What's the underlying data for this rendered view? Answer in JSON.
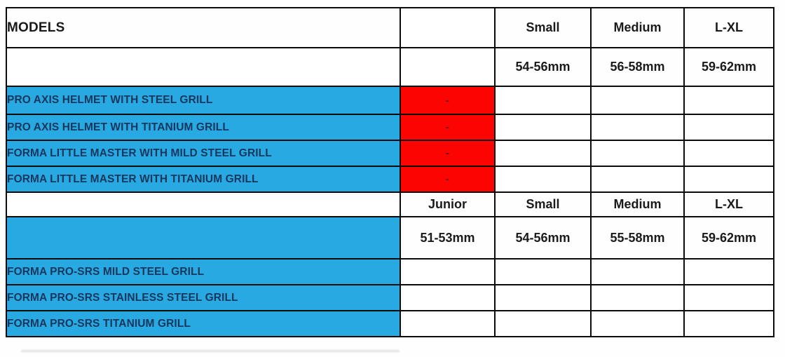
{
  "chart_data": {
    "type": "table",
    "title": "",
    "sections": [
      {
        "columns": [
          "MODELS",
          "",
          "Small",
          "Medium",
          "L-XL"
        ],
        "size_ranges": [
          "",
          "",
          "54-56mm",
          "56-58mm",
          "59-62mm"
        ],
        "rows": [
          [
            "PRO AXIS HELMET WITH STEEL GRILL",
            "-",
            "",
            "",
            ""
          ],
          [
            "PRO AXIS HELMET WITH TITANIUM GRILL",
            "-",
            "",
            "",
            ""
          ],
          [
            "FORMA LITTLE MASTER WITH MILD STEEL GRILL",
            "-",
            "",
            "",
            ""
          ],
          [
            "FORMA LITTLE MASTER WITH TITANIUM GRILL",
            "-",
            "",
            "",
            ""
          ]
        ]
      },
      {
        "columns": [
          "",
          "Junior",
          "Small",
          "Medium",
          "L-XL"
        ],
        "size_ranges": [
          "",
          "51-53mm",
          "54-56mm",
          "55-58mm",
          "59-62mm"
        ],
        "rows": [
          [
            "FORMA PRO-SRS MILD STEEL GRILL",
            "",
            "",
            "",
            ""
          ],
          [
            "FORMA PRO-SRS STAINLESS STEEL GRILL",
            "",
            "",
            "",
            ""
          ],
          [
            "FORMA PRO-SRS TITANIUM GRILL",
            "",
            "",
            "",
            ""
          ]
        ]
      }
    ]
  },
  "section1": {
    "models_label": "MODELS",
    "size_headers": [
      "Small",
      "Medium",
      "L-XL"
    ],
    "size_ranges": [
      "54-56mm",
      "56-58mm",
      "59-62mm"
    ],
    "rows": [
      {
        "label": "PRO AXIS HELMET WITH STEEL GRILL",
        "availability": "-"
      },
      {
        "label": "PRO AXIS HELMET WITH TITANIUM GRILL",
        "availability": "-"
      },
      {
        "label": "FORMA LITTLE MASTER WITH MILD STEEL GRILL",
        "availability": "-"
      },
      {
        "label": "FORMA LITTLE MASTER WITH TITANIUM GRILL",
        "availability": "-"
      }
    ]
  },
  "section2": {
    "size_headers": [
      "Junior",
      "Small",
      "Medium",
      "L-XL"
    ],
    "size_ranges": [
      "51-53mm",
      "54-56mm",
      "55-58mm",
      "59-62mm"
    ],
    "rows": [
      {
        "label": "FORMA PRO-SRS MILD STEEL GRILL"
      },
      {
        "label": "FORMA PRO-SRS STAINLESS STEEL GRILL"
      },
      {
        "label": "FORMA PRO-SRS TITANIUM GRILL"
      }
    ]
  },
  "colors": {
    "row_blue": "#29a9e1",
    "unavailable_red": "#fb0402",
    "model_text_navy": "#17375e",
    "header_text": "#1a1a1a",
    "border_black": "#0b0b0b"
  }
}
